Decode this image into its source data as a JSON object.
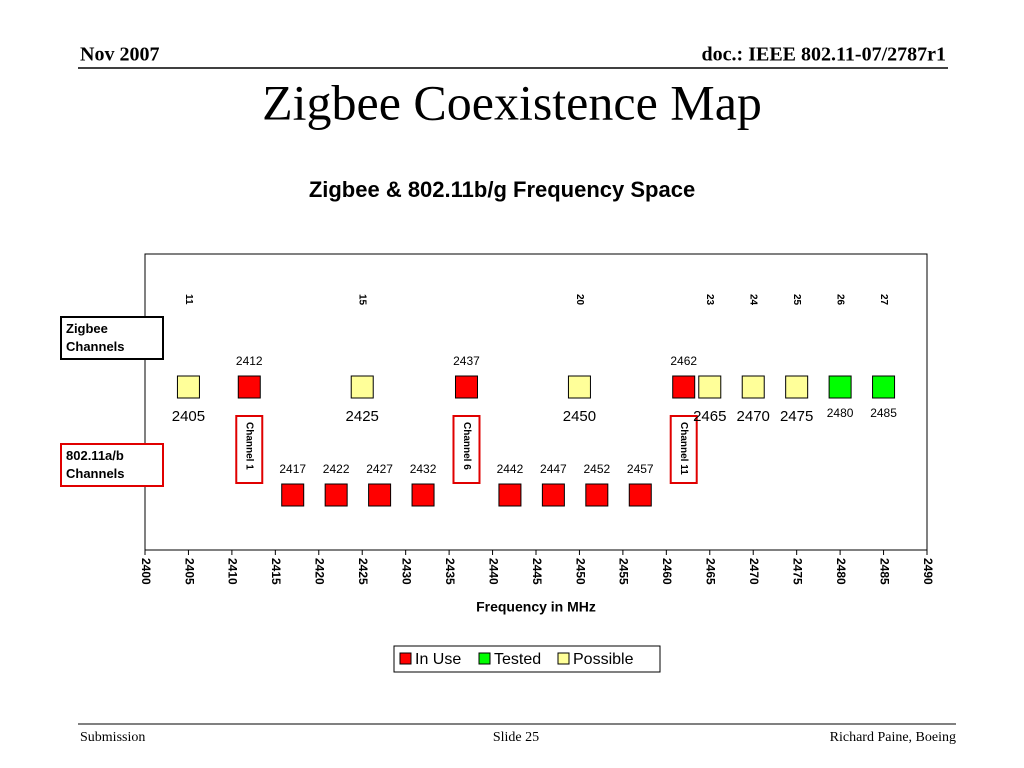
{
  "header": {
    "date": "Nov 2007",
    "doc": "doc.: IEEE 802.11-07/2787r1"
  },
  "title": "Zigbee Coexistence Map",
  "chart_data": {
    "type": "scatter",
    "title": "Zigbee & 802.11b/g Frequency Space",
    "x_label": "Frequency in MHz",
    "xlim": [
      2400,
      2490
    ],
    "xticks": [
      2400,
      2405,
      2410,
      2415,
      2420,
      2425,
      2430,
      2435,
      2440,
      2445,
      2450,
      2455,
      2460,
      2465,
      2470,
      2475,
      2480,
      2485,
      2490
    ],
    "series": [
      {
        "name": "In Use",
        "color": "#ff0000",
        "x": [
          2412,
          2437,
          2462,
          2417,
          2422,
          2427,
          2432,
          2442,
          2447,
          2452,
          2457
        ]
      },
      {
        "name": "Tested",
        "color": "#00ff00",
        "x": [
          2480,
          2485
        ]
      },
      {
        "name": "Possible",
        "color": "#ffff99",
        "x": [
          2405,
          2425,
          2450,
          2465,
          2470,
          2475
        ]
      }
    ],
    "row_labels": [
      "Zigbee Channels",
      "802.11a/b Channels"
    ],
    "channel_labels": [
      {
        "label": "Channel 1",
        "x": 2412
      },
      {
        "label": "Channel 6",
        "x": 2437
      },
      {
        "label": "Channel 11",
        "x": 2462
      }
    ],
    "zigbee_channels": [
      {
        "channel": 11,
        "x": 2405
      },
      {
        "channel": 15,
        "x": 2425
      },
      {
        "channel": 20,
        "x": 2450
      },
      {
        "channel": 23,
        "x": 2465
      },
      {
        "channel": 24,
        "x": 2470
      },
      {
        "channel": 25,
        "x": 2475
      },
      {
        "channel": 26,
        "x": 2480
      },
      {
        "channel": 27,
        "x": 2485
      }
    ],
    "legend": "bottom"
  },
  "footer": {
    "left": "Submission",
    "center": "Slide 25",
    "right": "Richard Paine, Boeing"
  }
}
